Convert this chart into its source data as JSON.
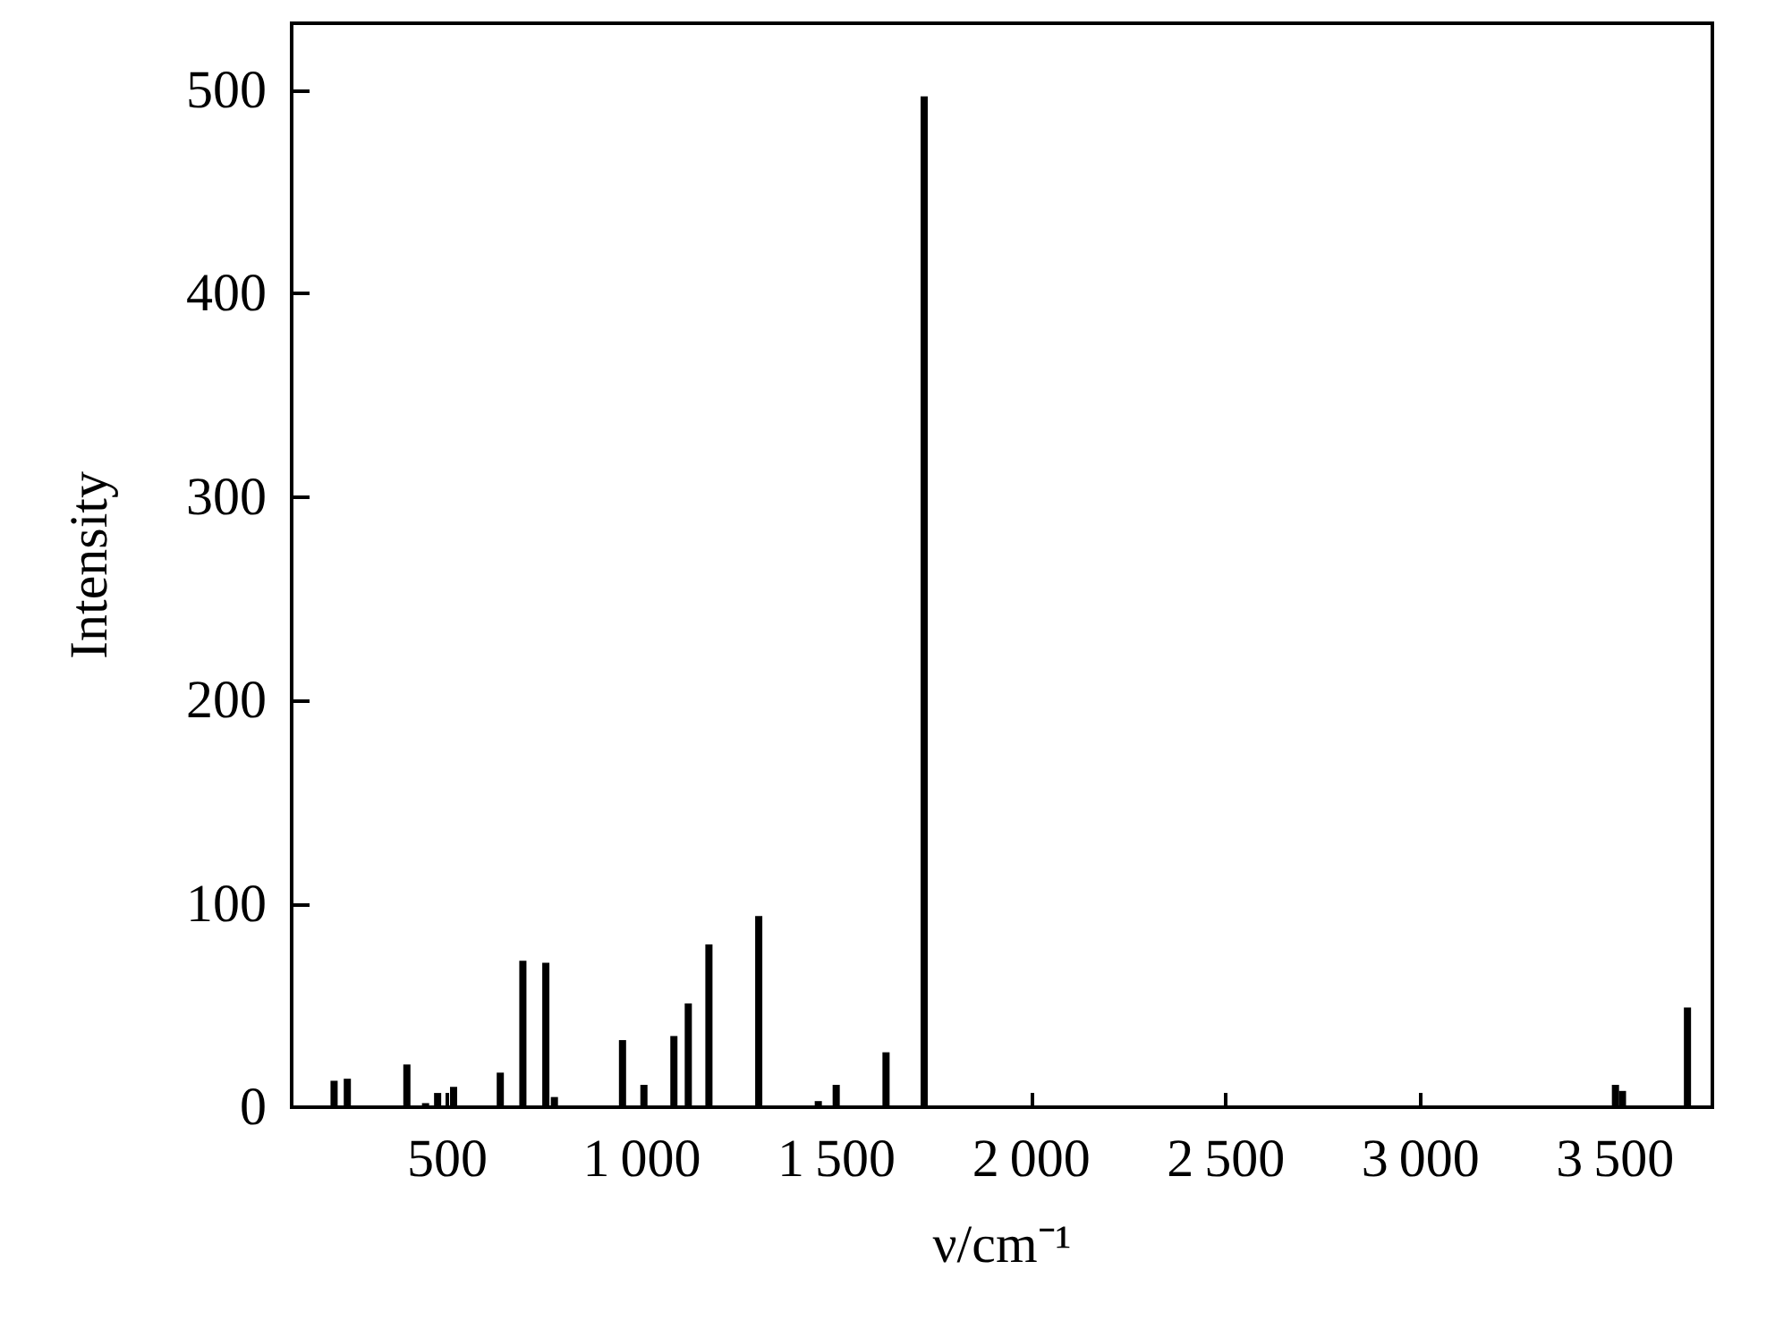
{
  "chart_data": {
    "type": "bar",
    "xlabel": "ν/cm⁻¹",
    "ylabel": "Intensity",
    "x": [
      209,
      243,
      396,
      444,
      475,
      516,
      636,
      694,
      753,
      775,
      950,
      1005,
      1082,
      1119,
      1172,
      1300,
      1453,
      1499,
      1627,
      1725,
      3501,
      3519,
      3686
    ],
    "values": [
      13,
      14,
      21,
      2,
      7,
      10,
      17,
      72,
      71,
      5,
      33,
      11,
      35,
      51,
      80,
      94,
      3,
      11,
      27,
      497,
      11,
      8,
      49
    ],
    "color": "#000000",
    "xlim": [
      100,
      3750
    ],
    "xticks": [
      500,
      1000,
      1500,
      2000,
      2500,
      3000,
      3500
    ],
    "ylim": [
      0,
      533
    ],
    "yticks": [
      0,
      100,
      200,
      300,
      400,
      500
    ],
    "grid": false
  }
}
